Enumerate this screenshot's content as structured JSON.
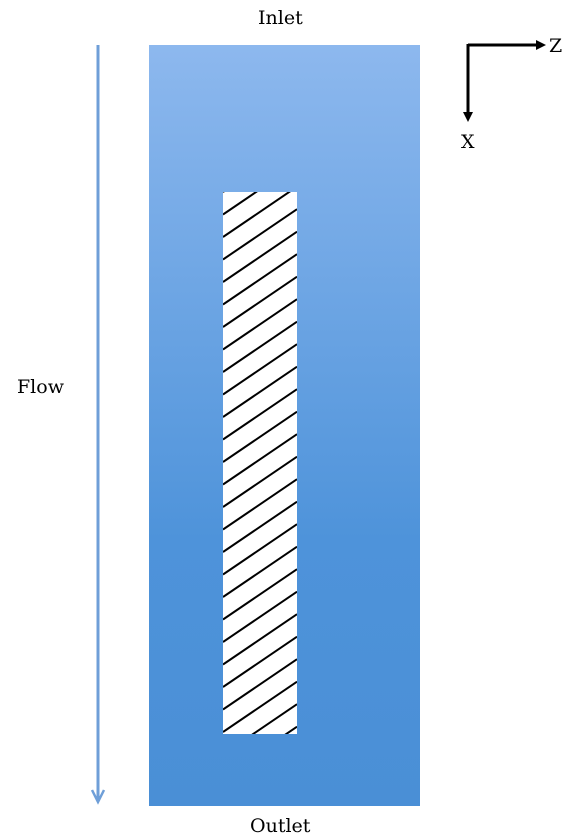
{
  "labels": {
    "inlet": "Inlet",
    "outlet": "Outlet",
    "flow": "Flow",
    "axis_z": "Z",
    "axis_x": "X"
  },
  "colors": {
    "channel_top": "#8DB8EE",
    "channel_bottom": "#4A8FD6",
    "flow_arrow": "#6F9FD8",
    "hatch": "#000000",
    "insert_fill": "#FFFFFF"
  }
}
